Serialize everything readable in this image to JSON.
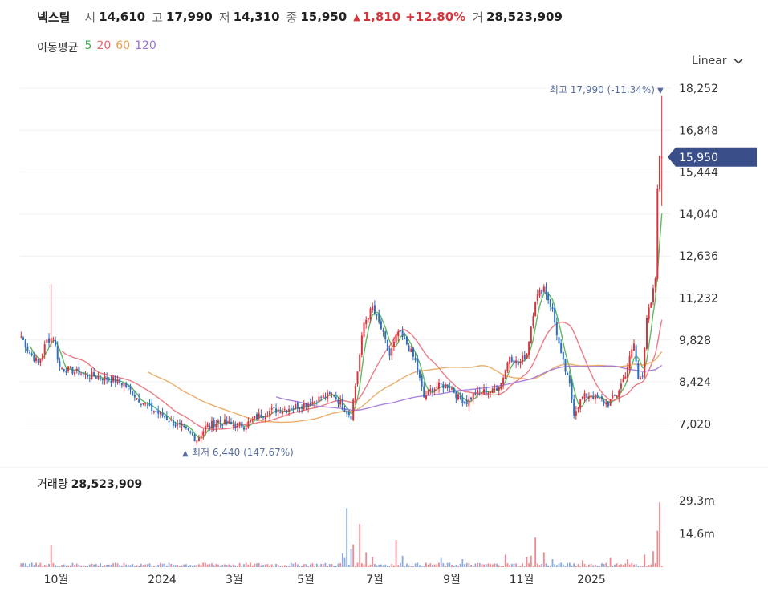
{
  "header": {
    "name": "넥스틸",
    "open_label": "시",
    "open": "14,610",
    "high_label": "고",
    "high": "17,990",
    "low_label": "저",
    "low": "14,310",
    "close_label": "종",
    "close": "15,950",
    "change_arrow": "▲",
    "change": "1,810",
    "change_pct": "+12.80%",
    "volume_label": "거",
    "volume": "28,523,909",
    "up_color": "#d8343b"
  },
  "moving_average": {
    "label": "이동평균",
    "periods": [
      {
        "text": "5",
        "color": "#3fae46"
      },
      {
        "text": "20",
        "color": "#e8646e"
      },
      {
        "text": "60",
        "color": "#e8a050"
      },
      {
        "text": "120",
        "color": "#9b6fd6"
      }
    ]
  },
  "scale_mode": "Linear",
  "chart_data": {
    "type": "candlestick",
    "y_ticks": [
      "18,252",
      "16,848",
      "15,444",
      "14,040",
      "12,636",
      "11,232",
      "9,828",
      "8,424",
      "7,020"
    ],
    "y_tick_values": [
      18252,
      16848,
      15444,
      14040,
      12636,
      11232,
      9828,
      8424,
      7020
    ],
    "ylim": [
      5850,
      18900
    ],
    "x_ticks": [
      "10월",
      "2024",
      "3월",
      "5월",
      "7월",
      "9월",
      "11월",
      "2025"
    ],
    "current_price": {
      "text": "15,950",
      "value": 15950,
      "color": "#3a4e8a"
    },
    "max_annotation": {
      "prefix": "최고",
      "value_text": "17,990",
      "pct": "(-11.34%)",
      "arrow": "▼",
      "value": 17990
    },
    "min_annotation": {
      "prefix": "최저",
      "value_text": "6,440",
      "pct": "(147.67%)",
      "arrow": "▲",
      "value": 6440
    },
    "price_anchors": [
      [
        0,
        9950
      ],
      [
        4,
        9400
      ],
      [
        8,
        9050
      ],
      [
        12,
        9800
      ],
      [
        15,
        9950
      ],
      [
        18,
        8900
      ],
      [
        24,
        8800
      ],
      [
        30,
        8650
      ],
      [
        36,
        8600
      ],
      [
        42,
        8500
      ],
      [
        48,
        8350
      ],
      [
        54,
        7900
      ],
      [
        60,
        7550
      ],
      [
        66,
        7300
      ],
      [
        72,
        7000
      ],
      [
        78,
        6750
      ],
      [
        82,
        6500
      ],
      [
        86,
        6900
      ],
      [
        92,
        7100
      ],
      [
        98,
        7000
      ],
      [
        104,
        6950
      ],
      [
        110,
        7250
      ],
      [
        116,
        7450
      ],
      [
        122,
        7500
      ],
      [
        128,
        7600
      ],
      [
        134,
        7700
      ],
      [
        140,
        7900
      ],
      [
        146,
        8000
      ],
      [
        150,
        7600
      ],
      [
        154,
        7300
      ],
      [
        157,
        8800
      ],
      [
        160,
        10400
      ],
      [
        164,
        10900
      ],
      [
        168,
        10200
      ],
      [
        172,
        9300
      ],
      [
        176,
        10100
      ],
      [
        180,
        9700
      ],
      [
        184,
        9100
      ],
      [
        188,
        7900
      ],
      [
        192,
        8200
      ],
      [
        196,
        8300
      ],
      [
        200,
        8300
      ],
      [
        204,
        7900
      ],
      [
        208,
        7750
      ],
      [
        212,
        8050
      ],
      [
        216,
        8100
      ],
      [
        220,
        8100
      ],
      [
        224,
        8400
      ],
      [
        228,
        9300
      ],
      [
        232,
        9000
      ],
      [
        236,
        9400
      ],
      [
        240,
        11200
      ],
      [
        244,
        11600
      ],
      [
        248,
        10800
      ],
      [
        252,
        9300
      ],
      [
        256,
        8300
      ],
      [
        258,
        7400
      ],
      [
        262,
        7900
      ],
      [
        266,
        8000
      ],
      [
        270,
        7800
      ],
      [
        274,
        7700
      ],
      [
        278,
        8000
      ],
      [
        282,
        8700
      ],
      [
        284,
        9200
      ],
      [
        286,
        9700
      ],
      [
        288,
        8500
      ],
      [
        290,
        8700
      ],
      [
        292,
        10600
      ],
      [
        294,
        11000
      ],
      [
        296,
        11900
      ],
      [
        297,
        14800
      ],
      [
        298,
        16000
      ]
    ],
    "volume": {
      "title": "거래량",
      "value_text": "28,523,909",
      "y_ticks": [
        "29.3m",
        "14.6m"
      ],
      "y_tick_values": [
        29.3,
        14.6
      ],
      "spikes": [
        [
          4,
          1.5
        ],
        [
          14,
          9.5
        ],
        [
          150,
          6.0
        ],
        [
          151,
          4.0
        ],
        [
          152,
          26.0
        ],
        [
          154,
          8.0
        ],
        [
          155,
          10.0
        ],
        [
          158,
          19.0
        ],
        [
          161,
          6.5
        ],
        [
          164,
          4.5
        ],
        [
          175,
          12.0
        ],
        [
          178,
          5.0
        ],
        [
          196,
          4.0
        ],
        [
          206,
          3.5
        ],
        [
          226,
          5.5
        ],
        [
          236,
          4.5
        ],
        [
          238,
          5.0
        ],
        [
          240,
          13.0
        ],
        [
          244,
          6.5
        ],
        [
          248,
          3.5
        ],
        [
          262,
          3.0
        ],
        [
          275,
          4.0
        ],
        [
          283,
          3.5
        ],
        [
          291,
          5.5
        ],
        [
          295,
          7.0
        ],
        [
          297,
          16.0
        ],
        [
          298,
          28.5
        ]
      ]
    }
  }
}
